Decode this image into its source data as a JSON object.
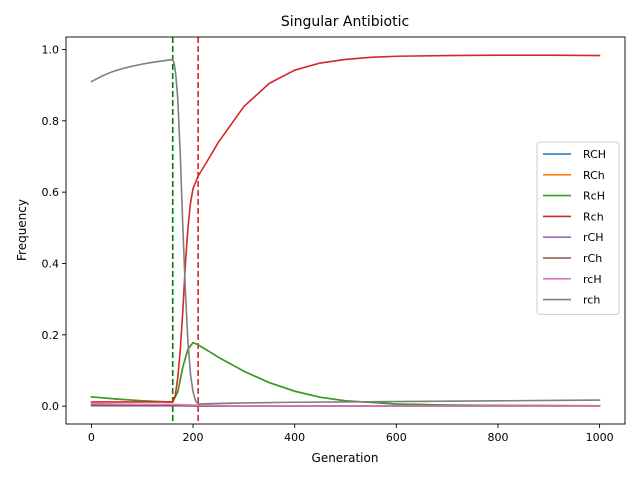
{
  "chart_data": {
    "type": "line",
    "title": "Singular Antibiotic",
    "xlabel": "Generation",
    "ylabel": "Frequency",
    "xlim": [
      -50,
      1050
    ],
    "ylim": [
      -0.05,
      1.035
    ],
    "xticks": [
      0,
      200,
      400,
      600,
      800,
      1000
    ],
    "xtick_labels": [
      "0",
      "200",
      "400",
      "600",
      "800",
      "1000"
    ],
    "yticks": [
      0.0,
      0.2,
      0.4,
      0.6,
      0.8,
      1.0
    ],
    "ytick_labels": [
      "0.0",
      "0.2",
      "0.4",
      "0.6",
      "0.8",
      "1.0"
    ],
    "grid": false,
    "legend_position": "right",
    "vlines": [
      {
        "x": 160,
        "color": "#008000",
        "style": "dashed"
      },
      {
        "x": 210,
        "color": "#d62728",
        "style": "dashed"
      }
    ],
    "series": [
      {
        "name": "RCH",
        "color": "#1f77b4",
        "x": [
          0,
          50,
          100,
          150,
          160,
          200,
          300,
          500,
          1000
        ],
        "y": [
          0.002,
          0.002,
          0.002,
          0.002,
          0.002,
          0.001,
          0.0005,
          0.0002,
          0.0001
        ]
      },
      {
        "name": "RCh",
        "color": "#ff7f0e",
        "x": [
          0,
          50,
          100,
          150,
          160,
          170,
          180,
          190,
          200,
          210,
          230,
          250,
          300,
          350,
          400,
          450,
          500,
          600,
          700,
          800,
          1000
        ],
        "y": [
          0.026,
          0.02,
          0.015,
          0.012,
          0.012,
          0.04,
          0.11,
          0.16,
          0.178,
          0.172,
          0.155,
          0.137,
          0.098,
          0.066,
          0.042,
          0.025,
          0.015,
          0.006,
          0.003,
          0.002,
          0.001
        ]
      },
      {
        "name": "RcH",
        "color": "#2ca02c",
        "x": [
          0,
          50,
          100,
          150,
          160,
          170,
          180,
          190,
          200,
          210,
          230,
          250,
          300,
          350,
          400,
          450,
          500,
          600,
          700,
          800,
          1000
        ],
        "y": [
          0.026,
          0.02,
          0.015,
          0.012,
          0.012,
          0.04,
          0.11,
          0.16,
          0.178,
          0.172,
          0.155,
          0.137,
          0.098,
          0.066,
          0.042,
          0.025,
          0.015,
          0.006,
          0.003,
          0.002,
          0.001
        ]
      },
      {
        "name": "Rch",
        "color": "#d62728",
        "x": [
          0,
          50,
          100,
          150,
          160,
          165,
          170,
          175,
          180,
          185,
          190,
          195,
          200,
          210,
          225,
          250,
          300,
          350,
          400,
          450,
          500,
          550,
          600,
          700,
          800,
          900,
          1000
        ],
        "y": [
          0.012,
          0.012,
          0.012,
          0.012,
          0.012,
          0.03,
          0.08,
          0.16,
          0.27,
          0.4,
          0.5,
          0.57,
          0.61,
          0.645,
          0.68,
          0.74,
          0.84,
          0.905,
          0.942,
          0.962,
          0.972,
          0.978,
          0.981,
          0.983,
          0.984,
          0.984,
          0.983
        ]
      },
      {
        "name": "rCH",
        "color": "#9467bd",
        "x": [
          0,
          100,
          160,
          200,
          400,
          1000
        ],
        "y": [
          0.001,
          0.001,
          0.001,
          0.0005,
          0.0002,
          0.0001
        ]
      },
      {
        "name": "rCh",
        "color": "#8c564b",
        "x": [
          0,
          100,
          160,
          200,
          400,
          1000
        ],
        "y": [
          0.003,
          0.002,
          0.002,
          0.001,
          0.0005,
          0.0002
        ]
      },
      {
        "name": "rcH",
        "color": "#e377c2",
        "x": [
          0,
          50,
          100,
          150,
          160,
          200,
          300,
          500,
          1000
        ],
        "y": [
          0.007,
          0.006,
          0.005,
          0.005,
          0.005,
          0.003,
          0.001,
          0.0005,
          0.0002
        ]
      },
      {
        "name": "rch",
        "color": "#7f7f7f",
        "x": [
          0,
          20,
          40,
          60,
          80,
          100,
          120,
          140,
          160,
          163,
          166,
          170,
          175,
          180,
          185,
          190,
          195,
          200,
          205,
          210,
          230,
          260,
          300,
          400,
          500,
          600,
          700,
          800,
          900,
          1000
        ],
        "y": [
          0.91,
          0.925,
          0.937,
          0.946,
          0.953,
          0.959,
          0.964,
          0.968,
          0.972,
          0.96,
          0.93,
          0.86,
          0.7,
          0.5,
          0.32,
          0.18,
          0.09,
          0.04,
          0.015,
          0.006,
          0.007,
          0.008,
          0.009,
          0.011,
          0.012,
          0.013,
          0.014,
          0.015,
          0.016,
          0.017
        ]
      }
    ]
  }
}
